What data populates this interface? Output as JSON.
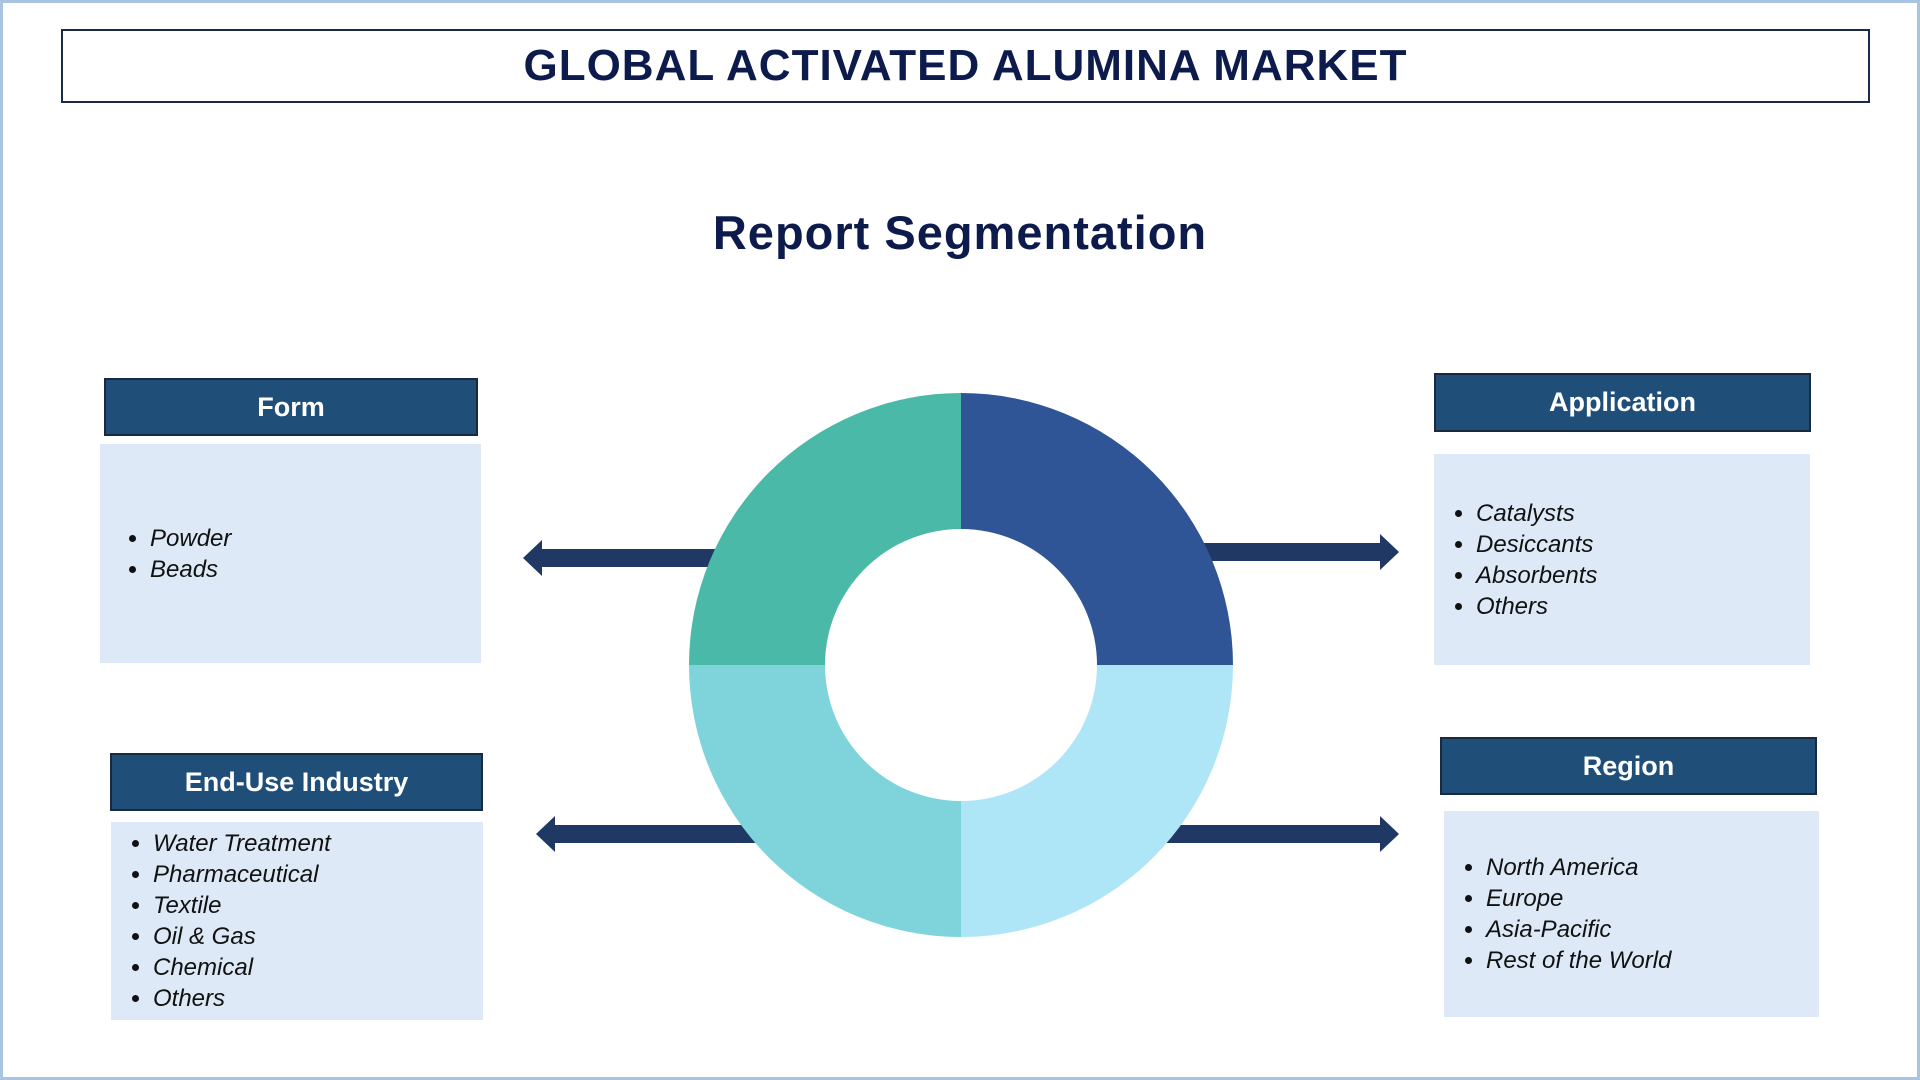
{
  "title": "GLOBAL ACTIVATED ALUMINA MARKET",
  "subtitle": "Report Segmentation",
  "colors": {
    "header_bg": "#1f4e79",
    "body_bg": "#dde9f6",
    "title_text": "#0d1b4c",
    "arrow": "#1f3864",
    "donut": [
      "#2f5597",
      "#aee6f8",
      "#7fd4dc",
      "#4ab9a8"
    ]
  },
  "segments": {
    "form": {
      "label": "Form",
      "items": [
        "Powder",
        "Beads"
      ]
    },
    "application": {
      "label": "Application",
      "items": [
        "Catalysts",
        "Desiccants",
        "Absorbents",
        "Others"
      ]
    },
    "end_use": {
      "label": "End-Use Industry",
      "items": [
        "Water Treatment",
        "Pharmaceutical",
        "Textile",
        "Oil & Gas",
        "Chemical",
        "Others"
      ]
    },
    "region": {
      "label": "Region",
      "items": [
        "North America",
        "Europe",
        "Asia-Pacific",
        "Rest of the World"
      ]
    }
  }
}
